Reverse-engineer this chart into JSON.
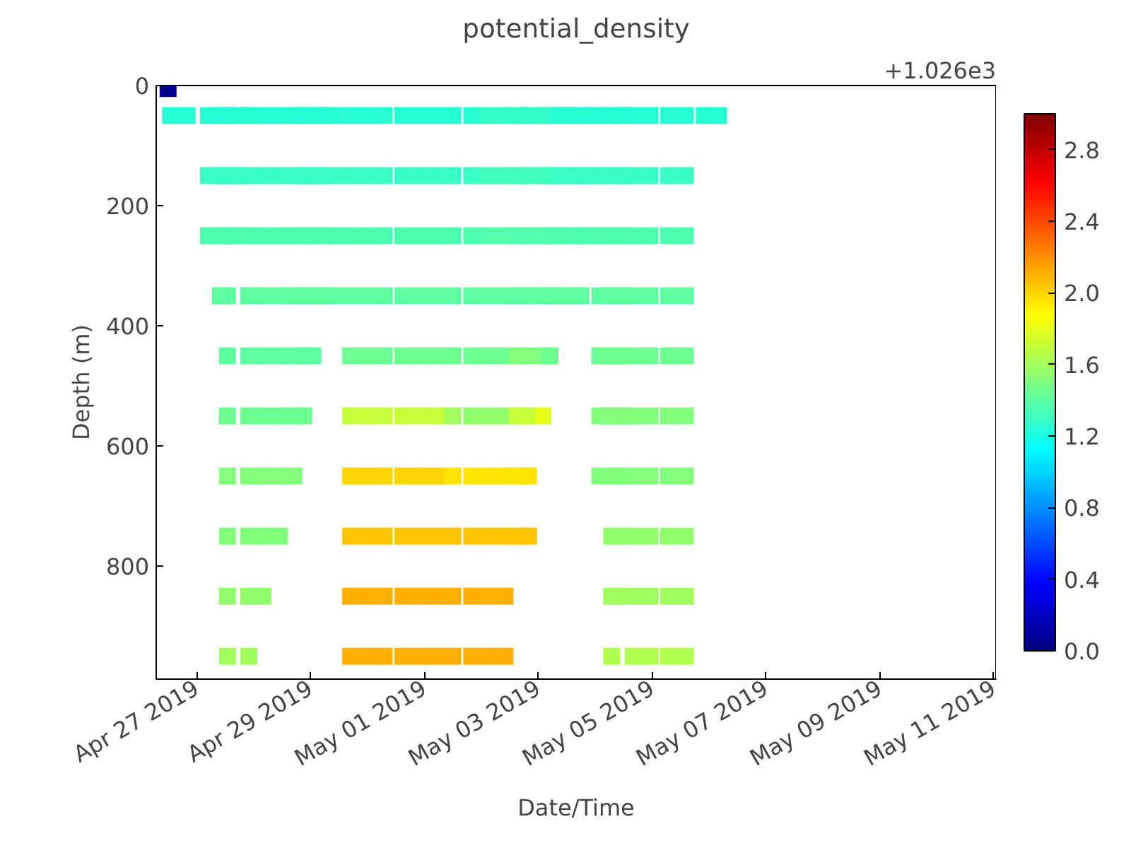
{
  "chart_data": {
    "type": "scatter",
    "title": "potential_density",
    "xlabel": "Date/Time",
    "ylabel": "Depth (m)",
    "marker": "square",
    "grid": false,
    "xlim": [
      "2019-04-26T07:00",
      "2019-05-11T01:00"
    ],
    "xticks": [
      {
        "value": "2019-04-27",
        "label": "Apr 27 2019"
      },
      {
        "value": "2019-04-29",
        "label": "Apr 29 2019"
      },
      {
        "value": "2019-05-01",
        "label": "May 01 2019"
      },
      {
        "value": "2019-05-03",
        "label": "May 03 2019"
      },
      {
        "value": "2019-05-05",
        "label": "May 05 2019"
      },
      {
        "value": "2019-05-07",
        "label": "May 07 2019"
      },
      {
        "value": "2019-05-09",
        "label": "May 09 2019"
      },
      {
        "value": "2019-05-11",
        "label": "May 11 2019"
      }
    ],
    "ylim": [
      988,
      0
    ],
    "yticks": [
      0,
      200,
      400,
      600,
      800
    ],
    "clim": [
      0,
      3
    ],
    "cticks": [
      {
        "value": 0,
        "label": "0.0"
      },
      {
        "value": 0.4,
        "label": "0.4"
      },
      {
        "value": 0.8,
        "label": "0.8"
      },
      {
        "value": 1.2,
        "label": "1.2"
      },
      {
        "value": 1.6,
        "label": "1.6"
      },
      {
        "value": 2.0,
        "label": "2.0"
      },
      {
        "value": 2.4,
        "label": "2.4"
      },
      {
        "value": 2.8,
        "label": "2.8"
      }
    ],
    "annotations": [
      "+1.026e3"
    ],
    "x": [
      "2019-04-26T12:00",
      "2019-04-26T13:00",
      "2019-04-26T20:00",
      "2019-04-27T05:00",
      "2019-04-27T05:00",
      "2019-04-27T05:00",
      "2019-04-27T10:00",
      "2019-04-27T10:00",
      "2019-04-27T10:00",
      "2019-04-27T10:00",
      "2019-04-27T13:00",
      "2019-04-27T13:00",
      "2019-04-27T13:00",
      "2019-04-27T13:00",
      "2019-04-27T13:00",
      "2019-04-27T13:00",
      "2019-04-27T13:00",
      "2019-04-27T13:00",
      "2019-04-27T13:00",
      "2019-04-27T13:00",
      "2019-04-27T17:00",
      "2019-04-27T17:00",
      "2019-04-27T17:00",
      "2019-04-27T22:00",
      "2019-04-27T22:00",
      "2019-04-27T22:00",
      "2019-04-27T22:00",
      "2019-04-27T22:00",
      "2019-04-27T22:00",
      "2019-04-27T22:00",
      "2019-04-27T22:00",
      "2019-04-27T22:00",
      "2019-04-27T22:00",
      "2019-04-28T04:00",
      "2019-04-28T04:00",
      "2019-04-28T04:00",
      "2019-04-28T04:00",
      "2019-04-28T04:00",
      "2019-04-28T04:00",
      "2019-04-28T04:00",
      "2019-04-28T04:00",
      "2019-04-28T04:00",
      "2019-04-28T11:00",
      "2019-04-28T11:00",
      "2019-04-28T11:00",
      "2019-04-28T11:00",
      "2019-04-28T11:00",
      "2019-04-28T11:00",
      "2019-04-28T11:00",
      "2019-04-28T11:00",
      "2019-04-28T17:00",
      "2019-04-28T17:00",
      "2019-04-28T17:00",
      "2019-04-28T17:00",
      "2019-04-28T17:00",
      "2019-04-28T17:00",
      "2019-04-28T17:00",
      "2019-04-28T21:00",
      "2019-04-28T21:00",
      "2019-04-28T21:00",
      "2019-04-28T21:00",
      "2019-04-28T21:00",
      "2019-04-28T21:00",
      "2019-04-29T01:00",
      "2019-04-29T01:00",
      "2019-04-29T01:00",
      "2019-04-29T01:00",
      "2019-04-29T01:00",
      "2019-04-29T05:00",
      "2019-04-29T05:00",
      "2019-04-29T05:00",
      "2019-04-29T05:00",
      "2019-04-29T10:00",
      "2019-04-29T10:00",
      "2019-04-29T10:00",
      "2019-04-29T10:00",
      "2019-04-29T17:00",
      "2019-04-29T17:00",
      "2019-04-29T17:00",
      "2019-04-29T17:00",
      "2019-04-29T17:00",
      "2019-04-29T17:00",
      "2019-04-29T17:00",
      "2019-04-29T17:00",
      "2019-04-29T17:00",
      "2019-04-29T17:00",
      "2019-04-30T00:00",
      "2019-04-30T00:00",
      "2019-04-30T00:00",
      "2019-04-30T00:00",
      "2019-04-30T00:00",
      "2019-04-30T00:00",
      "2019-04-30T00:00",
      "2019-04-30T00:00",
      "2019-04-30T00:00",
      "2019-04-30T00:00",
      "2019-04-30T07:00",
      "2019-04-30T07:00",
      "2019-04-30T07:00",
      "2019-04-30T07:00",
      "2019-04-30T07:00",
      "2019-04-30T07:00",
      "2019-04-30T07:00",
      "2019-04-30T07:00",
      "2019-04-30T07:00",
      "2019-04-30T07:00",
      "2019-04-30T15:00",
      "2019-04-30T15:00",
      "2019-04-30T15:00",
      "2019-04-30T15:00",
      "2019-04-30T15:00",
      "2019-04-30T15:00",
      "2019-04-30T15:00",
      "2019-04-30T15:00",
      "2019-04-30T15:00",
      "2019-04-30T15:00",
      "2019-04-30T22:00",
      "2019-04-30T22:00",
      "2019-04-30T22:00",
      "2019-04-30T22:00",
      "2019-04-30T22:00",
      "2019-04-30T22:00",
      "2019-04-30T22:00",
      "2019-04-30T22:00",
      "2019-04-30T22:00",
      "2019-04-30T22:00",
      "2019-05-01T05:00",
      "2019-05-01T05:00",
      "2019-05-01T05:00",
      "2019-05-01T05:00",
      "2019-05-01T05:00",
      "2019-05-01T05:00",
      "2019-05-01T05:00",
      "2019-05-01T05:00",
      "2019-05-01T05:00",
      "2019-05-01T05:00",
      "2019-05-01T12:00",
      "2019-05-01T12:00",
      "2019-05-01T12:00",
      "2019-05-01T12:00",
      "2019-05-01T12:00",
      "2019-05-01T12:00",
      "2019-05-01T12:00",
      "2019-05-01T12:00",
      "2019-05-01T12:00",
      "2019-05-01T12:00",
      "2019-05-01T20:00",
      "2019-05-01T20:00",
      "2019-05-01T20:00",
      "2019-05-01T20:00",
      "2019-05-01T20:00",
      "2019-05-01T20:00",
      "2019-05-01T20:00",
      "2019-05-01T20:00",
      "2019-05-01T20:00",
      "2019-05-01T20:00",
      "2019-05-02T03:00",
      "2019-05-02T03:00",
      "2019-05-02T03:00",
      "2019-05-02T03:00",
      "2019-05-02T03:00",
      "2019-05-02T03:00",
      "2019-05-02T03:00",
      "2019-05-02T03:00",
      "2019-05-02T03:00",
      "2019-05-02T03:00",
      "2019-05-02T10:00",
      "2019-05-02T10:00",
      "2019-05-02T10:00",
      "2019-05-02T10:00",
      "2019-05-02T10:00",
      "2019-05-02T10:00",
      "2019-05-02T10:00",
      "2019-05-02T10:00",
      "2019-05-02T10:00",
      "2019-05-02T10:00",
      "2019-05-02T15:00",
      "2019-05-02T15:00",
      "2019-05-02T15:00",
      "2019-05-02T15:00",
      "2019-05-02T15:00",
      "2019-05-02T15:00",
      "2019-05-02T15:00",
      "2019-05-02T15:00",
      "2019-05-02T20:00",
      "2019-05-02T20:00",
      "2019-05-02T20:00",
      "2019-05-02T20:00",
      "2019-05-02T20:00",
      "2019-05-02T20:00",
      "2019-05-02T20:00",
      "2019-05-02T20:00",
      "2019-05-03T02:00",
      "2019-05-03T02:00",
      "2019-05-03T02:00",
      "2019-05-03T02:00",
      "2019-05-03T02:00",
      "2019-05-03T02:00",
      "2019-05-03T05:00",
      "2019-05-03T05:00",
      "2019-05-03T05:00",
      "2019-05-03T05:00",
      "2019-05-03T05:00",
      "2019-05-03T09:00",
      "2019-05-03T09:00",
      "2019-05-03T09:00",
      "2019-05-03T09:00",
      "2019-05-03T14:00",
      "2019-05-03T14:00",
      "2019-05-03T14:00",
      "2019-05-03T14:00",
      "2019-05-03T18:00",
      "2019-05-03T18:00",
      "2019-05-03T18:00",
      "2019-05-03T18:00",
      "2019-05-03T21:00",
      "2019-05-03T21:00",
      "2019-05-03T21:00",
      "2019-05-04T02:00",
      "2019-05-04T02:00",
      "2019-05-04T02:00",
      "2019-05-04T02:00",
      "2019-05-04T02:00",
      "2019-05-04T02:00",
      "2019-05-04T02:00",
      "2019-05-04T07:00",
      "2019-05-04T07:00",
      "2019-05-04T07:00",
      "2019-05-04T07:00",
      "2019-05-04T07:00",
      "2019-05-04T07:00",
      "2019-05-04T07:00",
      "2019-05-04T07:00",
      "2019-05-04T07:00",
      "2019-05-04T07:00",
      "2019-05-04T11:00",
      "2019-05-04T11:00",
      "2019-05-04T11:00",
      "2019-05-04T11:00",
      "2019-05-04T11:00",
      "2019-05-04T11:00",
      "2019-05-04T11:00",
      "2019-05-04T11:00",
      "2019-05-04T11:00",
      "2019-05-04T16:00",
      "2019-05-04T16:00",
      "2019-05-04T16:00",
      "2019-05-04T16:00",
      "2019-05-04T16:00",
      "2019-05-04T16:00",
      "2019-05-04T16:00",
      "2019-05-04T16:00",
      "2019-05-04T16:00",
      "2019-05-04T16:00",
      "2019-05-04T23:00",
      "2019-05-04T23:00",
      "2019-05-04T23:00",
      "2019-05-04T23:00",
      "2019-05-04T23:00",
      "2019-05-04T23:00",
      "2019-05-04T23:00",
      "2019-05-04T23:00",
      "2019-05-04T23:00",
      "2019-05-04T23:00",
      "2019-05-05T07:00",
      "2019-05-05T07:00",
      "2019-05-05T07:00",
      "2019-05-05T07:00",
      "2019-05-05T07:00",
      "2019-05-05T07:00",
      "2019-05-05T07:00",
      "2019-05-05T07:00",
      "2019-05-05T07:00",
      "2019-05-05T07:00",
      "2019-05-05T14:00",
      "2019-05-05T14:00",
      "2019-05-05T14:00",
      "2019-05-05T14:00",
      "2019-05-05T14:00",
      "2019-05-05T14:00",
      "2019-05-05T14:00",
      "2019-05-05T14:00",
      "2019-05-05T14:00",
      "2019-05-05T14:00",
      "2019-05-05T22:00",
      "2019-05-06T04:00"
    ],
    "values": [
      5,
      50,
      50,
      50,
      150,
      250,
      50,
      150,
      250,
      350,
      50,
      150,
      250,
      350,
      450,
      550,
      650,
      750,
      850,
      950,
      50,
      150,
      250,
      50,
      150,
      250,
      350,
      450,
      550,
      650,
      750,
      850,
      950,
      50,
      150,
      250,
      350,
      450,
      550,
      650,
      750,
      850,
      50,
      150,
      250,
      350,
      450,
      550,
      650,
      750,
      50,
      150,
      250,
      350,
      450,
      550,
      650,
      50,
      150,
      250,
      350,
      450,
      550,
      50,
      150,
      250,
      350,
      450,
      50,
      150,
      250,
      350,
      50,
      150,
      250,
      350,
      50,
      150,
      250,
      350,
      450,
      550,
      650,
      750,
      850,
      950,
      50,
      150,
      250,
      350,
      450,
      550,
      650,
      750,
      850,
      950,
      50,
      150,
      250,
      350,
      450,
      550,
      650,
      750,
      850,
      950,
      50,
      150,
      250,
      350,
      450,
      550,
      650,
      750,
      850,
      950,
      50,
      150,
      250,
      350,
      450,
      550,
      650,
      750,
      850,
      950,
      50,
      150,
      250,
      350,
      450,
      550,
      650,
      750,
      850,
      950,
      50,
      150,
      250,
      350,
      450,
      550,
      650,
      750,
      850,
      950,
      50,
      150,
      250,
      350,
      450,
      550,
      650,
      750,
      850,
      950,
      50,
      150,
      250,
      350,
      450,
      550,
      650,
      750,
      850,
      950,
      50,
      150,
      250,
      350,
      450,
      550,
      650,
      750,
      850,
      950,
      50,
      150,
      250,
      350,
      450,
      550,
      650,
      750,
      50,
      150,
      250,
      350,
      450,
      550,
      650,
      750,
      50,
      150,
      250,
      350,
      450,
      550,
      50,
      150,
      250,
      350,
      450,
      50,
      150,
      250,
      350,
      50,
      150,
      250,
      350,
      50,
      150,
      250,
      350,
      50,
      150,
      250,
      50,
      150,
      250,
      350,
      450,
      550,
      650,
      50,
      150,
      250,
      350,
      450,
      550,
      650,
      750,
      850,
      950,
      50,
      150,
      250,
      350,
      450,
      550,
      650,
      750,
      850,
      50,
      150,
      250,
      350,
      450,
      550,
      650,
      750,
      850,
      950,
      50,
      150,
      250,
      350,
      450,
      550,
      650,
      750,
      850,
      950,
      50,
      150,
      250,
      350,
      450,
      550,
      650,
      750,
      850,
      950,
      50,
      150,
      250,
      350,
      450,
      550,
      650,
      750,
      850,
      950,
      50,
      50
    ],
    "cvalues": [
      0.05,
      1.25,
      1.25,
      1.25,
      1.3,
      1.35,
      1.25,
      1.3,
      1.35,
      1.4,
      1.25,
      1.3,
      1.35,
      1.4,
      1.4,
      1.45,
      1.5,
      1.5,
      1.55,
      1.6,
      1.25,
      1.3,
      1.35,
      1.25,
      1.3,
      1.35,
      1.4,
      1.4,
      1.45,
      1.5,
      1.5,
      1.55,
      1.6,
      1.25,
      1.3,
      1.35,
      1.4,
      1.4,
      1.45,
      1.5,
      1.5,
      1.55,
      1.25,
      1.3,
      1.35,
      1.4,
      1.4,
      1.45,
      1.5,
      1.5,
      1.25,
      1.3,
      1.35,
      1.4,
      1.4,
      1.45,
      1.5,
      1.25,
      1.3,
      1.35,
      1.4,
      1.4,
      1.45,
      1.25,
      1.3,
      1.35,
      1.4,
      1.4,
      1.25,
      1.3,
      1.35,
      1.4,
      1.25,
      1.3,
      1.35,
      1.4,
      1.25,
      1.3,
      1.35,
      1.4,
      1.45,
      1.7,
      2.0,
      2.05,
      2.1,
      2.1,
      1.25,
      1.3,
      1.35,
      1.4,
      1.45,
      1.7,
      2.0,
      2.05,
      2.1,
      2.1,
      1.25,
      1.3,
      1.35,
      1.4,
      1.45,
      1.7,
      2.0,
      2.05,
      2.1,
      2.1,
      1.25,
      1.3,
      1.35,
      1.4,
      1.45,
      1.7,
      2.0,
      2.05,
      2.1,
      2.1,
      1.25,
      1.3,
      1.35,
      1.4,
      1.45,
      1.7,
      2.0,
      2.05,
      2.1,
      2.1,
      1.25,
      1.3,
      1.35,
      1.4,
      1.45,
      1.7,
      2.0,
      2.05,
      2.1,
      2.1,
      1.25,
      1.3,
      1.35,
      1.4,
      1.45,
      1.6,
      1.95,
      2.05,
      2.1,
      2.1,
      1.25,
      1.3,
      1.35,
      1.4,
      1.45,
      1.55,
      1.95,
      2.05,
      2.1,
      2.1,
      1.28,
      1.32,
      1.36,
      1.4,
      1.45,
      1.55,
      1.95,
      2.05,
      2.1,
      2.1,
      1.28,
      1.32,
      1.36,
      1.4,
      1.45,
      1.55,
      1.95,
      2.05,
      2.1,
      2.1,
      1.28,
      1.32,
      1.36,
      1.4,
      1.5,
      1.7,
      1.95,
      2.05,
      1.28,
      1.32,
      1.36,
      1.4,
      1.5,
      1.7,
      1.95,
      2.05,
      1.28,
      1.32,
      1.36,
      1.4,
      1.5,
      1.8,
      1.28,
      1.32,
      1.36,
      1.4,
      1.45,
      1.25,
      1.3,
      1.35,
      1.4,
      1.25,
      1.3,
      1.35,
      1.4,
      1.25,
      1.3,
      1.35,
      1.4,
      1.25,
      1.3,
      1.35,
      1.25,
      1.3,
      1.35,
      1.4,
      1.45,
      1.5,
      1.5,
      1.25,
      1.3,
      1.35,
      1.4,
      1.45,
      1.5,
      1.5,
      1.55,
      1.6,
      1.65,
      1.25,
      1.3,
      1.35,
      1.4,
      1.45,
      1.5,
      1.5,
      1.55,
      1.6,
      1.25,
      1.3,
      1.35,
      1.4,
      1.45,
      1.5,
      1.5,
      1.55,
      1.6,
      1.65,
      1.25,
      1.3,
      1.35,
      1.4,
      1.45,
      1.5,
      1.5,
      1.55,
      1.6,
      1.65,
      1.25,
      1.3,
      1.35,
      1.4,
      1.45,
      1.5,
      1.5,
      1.55,
      1.6,
      1.65,
      1.25,
      1.3,
      1.35,
      1.4,
      1.45,
      1.5,
      1.5,
      1.55,
      1.6,
      1.65,
      1.25,
      1.25
    ]
  }
}
